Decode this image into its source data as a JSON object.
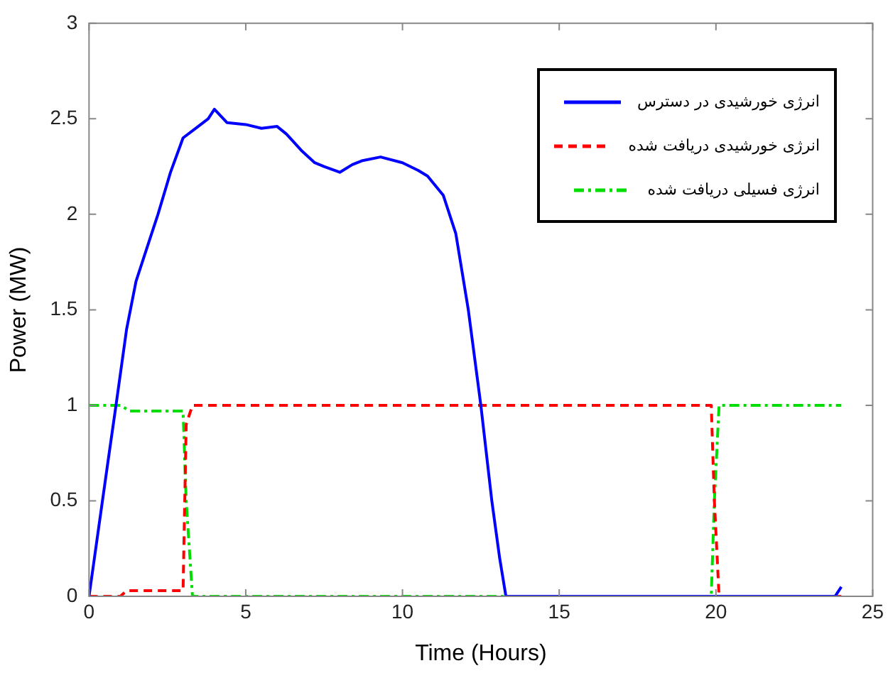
{
  "chart_data": {
    "type": "line",
    "xlabel": "Time (Hours)",
    "ylabel": "Power (MW)",
    "xlim": [
      0,
      25
    ],
    "ylim": [
      0,
      3
    ],
    "xticks": [
      0,
      5,
      10,
      15,
      20,
      25
    ],
    "yticks": [
      0,
      0.5,
      1,
      1.5,
      2,
      2.5,
      3
    ],
    "grid": false,
    "legend": "top right",
    "marker": "none",
    "series": [
      {
        "name": "انرژی خورشیدی در دسترس",
        "color": "#0000ff",
        "line_style": "solid",
        "x": [
          0,
          0.3,
          0.6,
          0.86,
          1.2,
          1.5,
          1.9,
          2.2,
          2.6,
          3.0,
          3.4,
          3.8,
          4.0,
          4.4,
          5.0,
          5.5,
          6.0,
          6.3,
          6.8,
          7.2,
          7.5,
          8.0,
          8.4,
          8.7,
          9.3,
          10.0,
          10.5,
          10.8,
          11.3,
          11.7,
          12.1,
          12.5,
          12.85,
          13.1,
          13.3,
          15,
          20,
          23.8,
          24
        ],
        "values": [
          0,
          0.35,
          0.7,
          1.0,
          1.4,
          1.65,
          1.85,
          2.0,
          2.22,
          2.4,
          2.45,
          2.5,
          2.55,
          2.48,
          2.47,
          2.45,
          2.46,
          2.42,
          2.33,
          2.27,
          2.25,
          2.22,
          2.26,
          2.28,
          2.3,
          2.27,
          2.23,
          2.2,
          2.1,
          1.9,
          1.5,
          1.0,
          0.5,
          0.2,
          0,
          0,
          0,
          0,
          0.05
        ]
      },
      {
        "name": "انرژی خورشیدی دریافت شده",
        "color": "#ff0000",
        "line_style": "dashed",
        "x": [
          0,
          1,
          1.2,
          3,
          3.1,
          3.3,
          5,
          10,
          15,
          19.85,
          19.95,
          20.1,
          22,
          24
        ],
        "values": [
          0,
          0,
          0.03,
          0.03,
          0.9,
          1,
          1,
          1,
          1,
          1,
          0.5,
          0,
          0,
          0
        ]
      },
      {
        "name": "انرژی فسیلی دریافت شده",
        "color": "#00dd00",
        "line_style": "dashdot",
        "x": [
          0,
          1,
          1.3,
          3,
          3.1,
          3.3,
          5,
          10,
          15,
          19.85,
          19.95,
          20.1,
          22,
          24
        ],
        "values": [
          1,
          1,
          0.97,
          0.97,
          0.5,
          0,
          0,
          0,
          0,
          0,
          0.5,
          1,
          1,
          1
        ]
      }
    ]
  }
}
